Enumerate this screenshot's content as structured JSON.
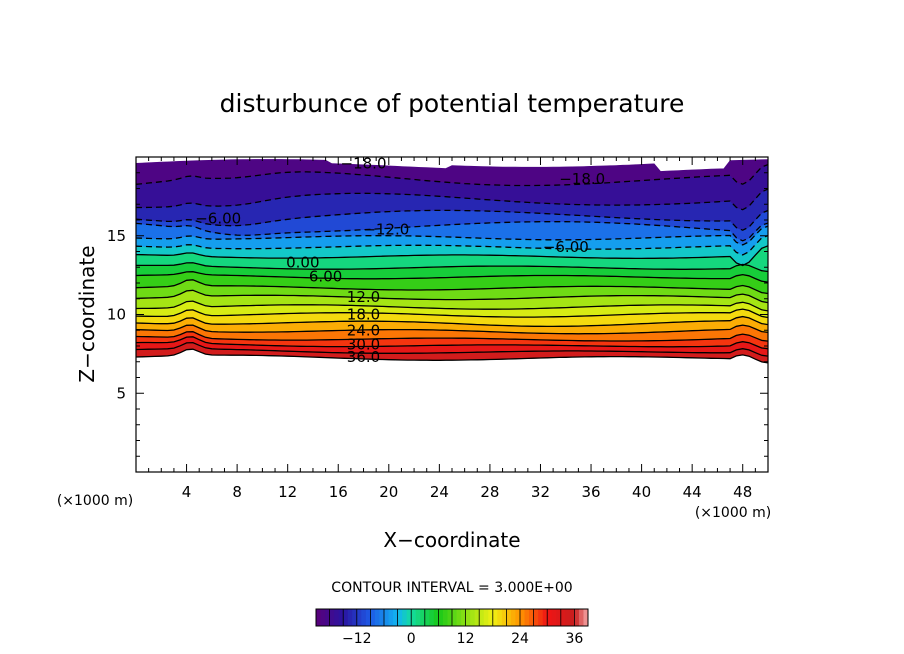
{
  "chart_data": {
    "type": "contour",
    "title": "disturbunce of potential temperature",
    "xlabel": "X−coordinate",
    "ylabel": "Z−coordinate",
    "x_unit": "(×1000 m)",
    "y_unit": "(×1000 m)",
    "xlim": [
      0,
      50
    ],
    "ylim": [
      0,
      20
    ],
    "x_ticks": [
      4,
      8,
      12,
      16,
      20,
      24,
      28,
      32,
      36,
      40,
      44,
      48
    ],
    "y_ticks": [
      5,
      10,
      15
    ],
    "contour_interval_text": "CONTOUR INTERVAL = 3.000E+00",
    "contour_interval": 3,
    "colorbar": {
      "min": -21,
      "max": 39,
      "tick_values": [
        -12,
        0,
        12,
        24,
        36
      ],
      "tick_labels": [
        "−12",
        "0",
        "12",
        "24",
        "36"
      ]
    },
    "levels": [
      {
        "value": 36,
        "z": 7.3
      },
      {
        "value": 33,
        "z": 7.7
      },
      {
        "value": 30,
        "z": 8.1
      },
      {
        "value": 27,
        "z": 8.5
      },
      {
        "value": 24,
        "z": 9.0
      },
      {
        "value": 21,
        "z": 9.5
      },
      {
        "value": 18,
        "z": 10.0
      },
      {
        "value": 15,
        "z": 10.5
      },
      {
        "value": 12,
        "z": 11.1
      },
      {
        "value": 9,
        "z": 11.7
      },
      {
        "value": 6,
        "z": 12.4
      },
      {
        "value": 3,
        "z": 13.0
      },
      {
        "value": 0,
        "z": 13.7
      },
      {
        "value": -3,
        "z": 14.3
      },
      {
        "value": -6,
        "z": 14.9
      },
      {
        "value": -9,
        "z": 15.6
      },
      {
        "value": -12,
        "z": 16.3
      },
      {
        "value": -15,
        "z": 17.3
      },
      {
        "value": -18,
        "z": 18.6
      }
    ],
    "contour_labels": [
      {
        "text": "36.0",
        "x": 18.0,
        "z": 7.3
      },
      {
        "text": "30.0",
        "x": 18.0,
        "z": 8.1
      },
      {
        "text": "24.0",
        "x": 18.0,
        "z": 9.0
      },
      {
        "text": "18.0",
        "x": 18.0,
        "z": 10.0
      },
      {
        "text": "12.0",
        "x": 18.0,
        "z": 11.1
      },
      {
        "text": "6.00",
        "x": 15.0,
        "z": 12.4
      },
      {
        "text": "0.00",
        "x": 13.2,
        "z": 13.3
      },
      {
        "text": "−6.00",
        "x": 6.5,
        "z": 16.1
      },
      {
        "text": "−6.00",
        "x": 34.0,
        "z": 14.3
      },
      {
        "text": "−12.0",
        "x": 19.8,
        "z": 15.4
      },
      {
        "text": "−18.0",
        "x": 18.0,
        "z": 19.6
      },
      {
        "text": "−18.0",
        "x": 35.3,
        "z": 18.6
      }
    ]
  }
}
